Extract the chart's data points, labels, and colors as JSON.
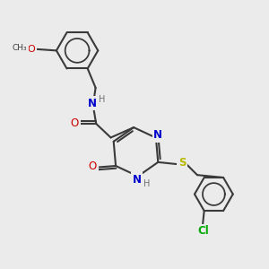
{
  "bg_color": "#ebebeb",
  "atom_colors": {
    "C": "#3a3a3a",
    "N": "#0000cc",
    "O": "#cc0000",
    "S": "#b8b800",
    "Cl": "#00aa00",
    "H": "#707070"
  },
  "bond_color": "#3a3a3a",
  "bond_width": 1.5
}
